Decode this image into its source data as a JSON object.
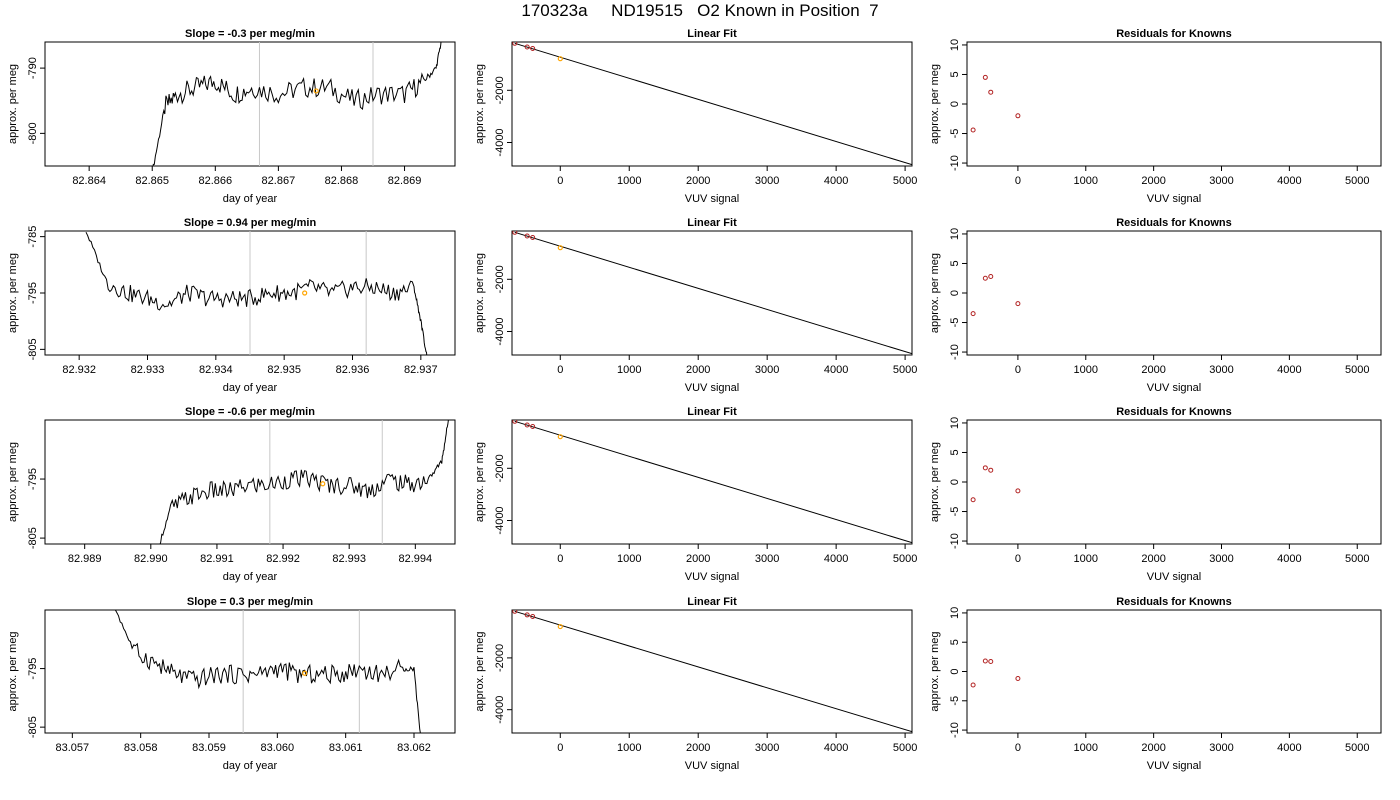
{
  "figure": {
    "title": "170323a     ND19515   O2 Known in Position  7"
  },
  "chart_data": [
    {
      "row": 1,
      "type": "line",
      "title": "Slope =  -0.3  per meg/min",
      "xlabel": "day of year",
      "ylabel": "approx. per meg",
      "xlim": [
        82.8633,
        82.8698
      ],
      "ylim": [
        -805,
        -786
      ],
      "xticks": [
        82.864,
        82.865,
        82.866,
        82.867,
        82.868,
        82.869
      ],
      "xtick_labels": [
        "82.864",
        "82.865",
        "82.866",
        "82.867",
        "82.868",
        "82.869"
      ],
      "yticks": [
        -800,
        -790
      ],
      "ytick_labels": [
        "-800",
        "-790"
      ],
      "vlines": [
        82.8667,
        82.8685
      ],
      "series": [
        {
          "x": [
            82.865,
            82.8652,
            82.8654,
            82.8657,
            82.866,
            82.8663,
            82.8666,
            82.867,
            82.8674,
            82.8678,
            82.8682,
            82.8686,
            82.869,
            82.8693,
            82.8695,
            82.8696
          ],
          "y": [
            -806,
            -796,
            -794,
            -793,
            -792,
            -794,
            -793,
            -794,
            -793,
            -793,
            -795,
            -794,
            -794,
            -792,
            -790,
            -785
          ]
        }
      ],
      "highlight": {
        "x": 82.8676,
        "y": -793.5,
        "color": "#ffa500"
      }
    },
    {
      "row": 1,
      "type": "scatter",
      "title": "Linear Fit",
      "xlabel": "VUV signal",
      "ylabel": "approx. per meg",
      "xlim": [
        -700,
        5100
      ],
      "ylim": [
        -4900,
        -150
      ],
      "xticks": [
        0,
        1000,
        2000,
        3000,
        4000,
        5000
      ],
      "xtick_labels": [
        "0",
        "1000",
        "2000",
        "3000",
        "4000",
        "5000"
      ],
      "yticks": [
        -4000,
        -2000
      ],
      "ytick_labels": [
        "-4000",
        "-2000"
      ],
      "line": {
        "x": [
          -660,
          5100
        ],
        "y": [
          -200,
          -4850
        ]
      },
      "points": {
        "x": [
          -660,
          -480,
          -400
        ],
        "y": [
          -200,
          -340,
          -400
        ],
        "color": "#b22222"
      },
      "highlight": {
        "x": 0,
        "y": -790,
        "color": "#ffa500"
      }
    },
    {
      "row": 1,
      "type": "scatter",
      "title": "Residuals for Knowns",
      "xlabel": "VUV signal",
      "ylabel": "approx. per meg",
      "xlim": [
        -750,
        5350
      ],
      "ylim": [
        -10.5,
        10.5
      ],
      "xticks": [
        0,
        1000,
        2000,
        3000,
        4000,
        5000
      ],
      "xtick_labels": [
        "0",
        "1000",
        "2000",
        "3000",
        "4000",
        "5000"
      ],
      "yticks": [
        -10,
        -5,
        0,
        5,
        10
      ],
      "ytick_labels": [
        "-10",
        "-5",
        "0",
        "5",
        "10"
      ],
      "points": {
        "x": [
          -660,
          -480,
          -400,
          0
        ],
        "y": [
          -4.4,
          4.5,
          2.0,
          -2.0
        ],
        "color": "#b22222"
      }
    },
    {
      "row": 2,
      "type": "line",
      "title": "Slope =  0.94  per meg/min",
      "xlabel": "day of year",
      "ylabel": "approx. per meg",
      "xlim": [
        82.9315,
        82.9375
      ],
      "ylim": [
        -806,
        -784
      ],
      "xticks": [
        82.932,
        82.933,
        82.934,
        82.935,
        82.936,
        82.937
      ],
      "xtick_labels": [
        "82.932",
        "82.933",
        "82.934",
        "82.935",
        "82.936",
        "82.937"
      ],
      "yticks": [
        -805,
        -795,
        -785
      ],
      "ytick_labels": [
        "-805",
        "-795",
        "-785"
      ],
      "vlines": [
        82.9345,
        82.9362
      ],
      "series": [
        {
          "x": [
            82.9321,
            82.9324,
            82.9327,
            82.933,
            82.9333,
            82.9336,
            82.9339,
            82.9342,
            82.9345,
            82.9348,
            82.9351,
            82.9354,
            82.9357,
            82.936,
            82.9363,
            82.9366,
            82.9369,
            82.937,
            82.9371
          ],
          "y": [
            -784,
            -793,
            -795,
            -796,
            -797,
            -795,
            -796,
            -796,
            -796,
            -795,
            -795,
            -794,
            -795,
            -794,
            -794,
            -795,
            -794,
            -800,
            -807
          ]
        }
      ],
      "highlight": {
        "x": 82.9353,
        "y": -795.0,
        "color": "#ffa500"
      }
    },
    {
      "row": 2,
      "type": "scatter",
      "title": "Linear Fit",
      "xlabel": "VUV signal",
      "ylabel": "approx. per meg",
      "xlim": [
        -700,
        5100
      ],
      "ylim": [
        -4900,
        -150
      ],
      "xticks": [
        0,
        1000,
        2000,
        3000,
        4000,
        5000
      ],
      "xtick_labels": [
        "0",
        "1000",
        "2000",
        "3000",
        "4000",
        "5000"
      ],
      "yticks": [
        -4000,
        -2000
      ],
      "ytick_labels": [
        "-4000",
        "-2000"
      ],
      "line": {
        "x": [
          -660,
          5100
        ],
        "y": [
          -200,
          -4850
        ]
      },
      "points": {
        "x": [
          -660,
          -480,
          -400
        ],
        "y": [
          -200,
          -340,
          -400
        ],
        "color": "#b22222"
      },
      "highlight": {
        "x": 0,
        "y": -790,
        "color": "#ffa500"
      }
    },
    {
      "row": 2,
      "type": "scatter",
      "title": "Residuals for Knowns",
      "xlabel": "VUV signal",
      "ylabel": "approx. per meg",
      "xlim": [
        -750,
        5350
      ],
      "ylim": [
        -10.5,
        10.5
      ],
      "xticks": [
        0,
        1000,
        2000,
        3000,
        4000,
        5000
      ],
      "xtick_labels": [
        "0",
        "1000",
        "2000",
        "3000",
        "4000",
        "5000"
      ],
      "yticks": [
        -10,
        -5,
        0,
        5,
        10
      ],
      "ytick_labels": [
        "-10",
        "-5",
        "0",
        "5",
        "10"
      ],
      "points": {
        "x": [
          -660,
          -480,
          -400,
          0
        ],
        "y": [
          -3.5,
          2.5,
          2.8,
          -1.8
        ],
        "color": "#b22222"
      }
    },
    {
      "row": 3,
      "type": "line",
      "title": "Slope =  -0.6  per meg/min",
      "xlabel": "day of year",
      "ylabel": "approx. per meg",
      "xlim": [
        82.9884,
        82.9946
      ],
      "ylim": [
        -806,
        -785
      ],
      "xticks": [
        82.989,
        82.99,
        82.991,
        82.992,
        82.993,
        82.994
      ],
      "xtick_labels": [
        "82.989",
        "82.990",
        "82.991",
        "82.992",
        "82.993",
        "82.994"
      ],
      "yticks": [
        -805,
        -795
      ],
      "ytick_labels": [
        "-805",
        "-795"
      ],
      "vlines": [
        82.9918,
        82.9935
      ],
      "series": [
        {
          "x": [
            82.9901,
            82.9903,
            82.9906,
            82.9909,
            82.9912,
            82.9915,
            82.9918,
            82.9921,
            82.9924,
            82.9927,
            82.993,
            82.9933,
            82.9936,
            82.9939,
            82.9942,
            82.9944,
            82.9945
          ],
          "y": [
            -807,
            -800,
            -798,
            -797,
            -797,
            -796,
            -796,
            -795,
            -795,
            -796,
            -796,
            -797,
            -795,
            -796,
            -795,
            -792,
            -785
          ]
        }
      ],
      "highlight": {
        "x": 82.9926,
        "y": -795.8,
        "color": "#ffa500"
      }
    },
    {
      "row": 3,
      "type": "scatter",
      "title": "Linear Fit",
      "xlabel": "VUV signal",
      "ylabel": "approx. per meg",
      "xlim": [
        -700,
        5100
      ],
      "ylim": [
        -4900,
        -150
      ],
      "xticks": [
        0,
        1000,
        2000,
        3000,
        4000,
        5000
      ],
      "xtick_labels": [
        "0",
        "1000",
        "2000",
        "3000",
        "4000",
        "5000"
      ],
      "yticks": [
        -4000,
        -2000
      ],
      "ytick_labels": [
        "-4000",
        "-2000"
      ],
      "line": {
        "x": [
          -660,
          5100
        ],
        "y": [
          -200,
          -4850
        ]
      },
      "points": {
        "x": [
          -660,
          -480,
          -400
        ],
        "y": [
          -200,
          -340,
          -400
        ],
        "color": "#b22222"
      },
      "highlight": {
        "x": 0,
        "y": -790,
        "color": "#ffa500"
      }
    },
    {
      "row": 3,
      "type": "scatter",
      "title": "Residuals for Knowns",
      "xlabel": "VUV signal",
      "ylabel": "approx. per meg",
      "xlim": [
        -750,
        5350
      ],
      "ylim": [
        -10.5,
        10.5
      ],
      "xticks": [
        0,
        1000,
        2000,
        3000,
        4000,
        5000
      ],
      "xtick_labels": [
        "0",
        "1000",
        "2000",
        "3000",
        "4000",
        "5000"
      ],
      "yticks": [
        -10,
        -5,
        0,
        5,
        10
      ],
      "ytick_labels": [
        "-10",
        "-5",
        "0",
        "5",
        "10"
      ],
      "points": {
        "x": [
          -660,
          -480,
          -400,
          0
        ],
        "y": [
          -3.0,
          2.4,
          2.0,
          -1.5
        ],
        "color": "#b22222"
      }
    },
    {
      "row": 4,
      "type": "line",
      "title": "Slope =  0.3  per meg/min",
      "xlabel": "day of year",
      "ylabel": "approx. per meg",
      "xlim": [
        83.0566,
        83.0626
      ],
      "ylim": [
        -806,
        -785
      ],
      "xticks": [
        83.057,
        83.058,
        83.059,
        83.06,
        83.061,
        83.062
      ],
      "xtick_labels": [
        "83.057",
        "83.058",
        "83.059",
        "83.060",
        "83.061",
        "83.062"
      ],
      "yticks": [
        -805,
        -795
      ],
      "ytick_labels": [
        "-805",
        "-795"
      ],
      "vlines": [
        83.0595,
        83.0612
      ],
      "series": [
        {
          "x": [
            83.0576,
            83.0579,
            83.0582,
            83.0585,
            83.0588,
            83.0591,
            83.0594,
            83.0597,
            83.06,
            83.0603,
            83.0606,
            83.0609,
            83.0612,
            83.0615,
            83.0618,
            83.062,
            83.0621
          ],
          "y": [
            -784,
            -792,
            -794,
            -796,
            -797,
            -796,
            -796,
            -796,
            -795,
            -796,
            -796,
            -796,
            -795,
            -796,
            -795,
            -795,
            -807
          ]
        }
      ],
      "highlight": {
        "x": 83.0604,
        "y": -795.8,
        "color": "#ffa500"
      }
    },
    {
      "row": 4,
      "type": "scatter",
      "title": "Linear Fit",
      "xlabel": "VUV signal",
      "ylabel": "approx. per meg",
      "xlim": [
        -700,
        5100
      ],
      "ylim": [
        -4900,
        -150
      ],
      "xticks": [
        0,
        1000,
        2000,
        3000,
        4000,
        5000
      ],
      "xtick_labels": [
        "0",
        "1000",
        "2000",
        "3000",
        "4000",
        "5000"
      ],
      "yticks": [
        -4000,
        -2000
      ],
      "ytick_labels": [
        "-4000",
        "-2000"
      ],
      "line": {
        "x": [
          -660,
          5100
        ],
        "y": [
          -200,
          -4850
        ]
      },
      "points": {
        "x": [
          -660,
          -480,
          -400
        ],
        "y": [
          -200,
          -340,
          -400
        ],
        "color": "#b22222"
      },
      "highlight": {
        "x": 0,
        "y": -790,
        "color": "#ffa500"
      }
    },
    {
      "row": 4,
      "type": "scatter",
      "title": "Residuals for Knowns",
      "xlabel": "VUV signal",
      "ylabel": "approx. per meg",
      "xlim": [
        -750,
        5350
      ],
      "ylim": [
        -10.5,
        10.5
      ],
      "xticks": [
        0,
        1000,
        2000,
        3000,
        4000,
        5000
      ],
      "xtick_labels": [
        "0",
        "1000",
        "2000",
        "3000",
        "4000",
        "5000"
      ],
      "yticks": [
        -10,
        -5,
        0,
        5,
        10
      ],
      "ytick_labels": [
        "-10",
        "-5",
        "0",
        "5",
        "10"
      ],
      "points": {
        "x": [
          -660,
          -480,
          -400,
          0
        ],
        "y": [
          -2.3,
          1.8,
          1.7,
          -1.2
        ],
        "color": "#b22222"
      }
    }
  ]
}
